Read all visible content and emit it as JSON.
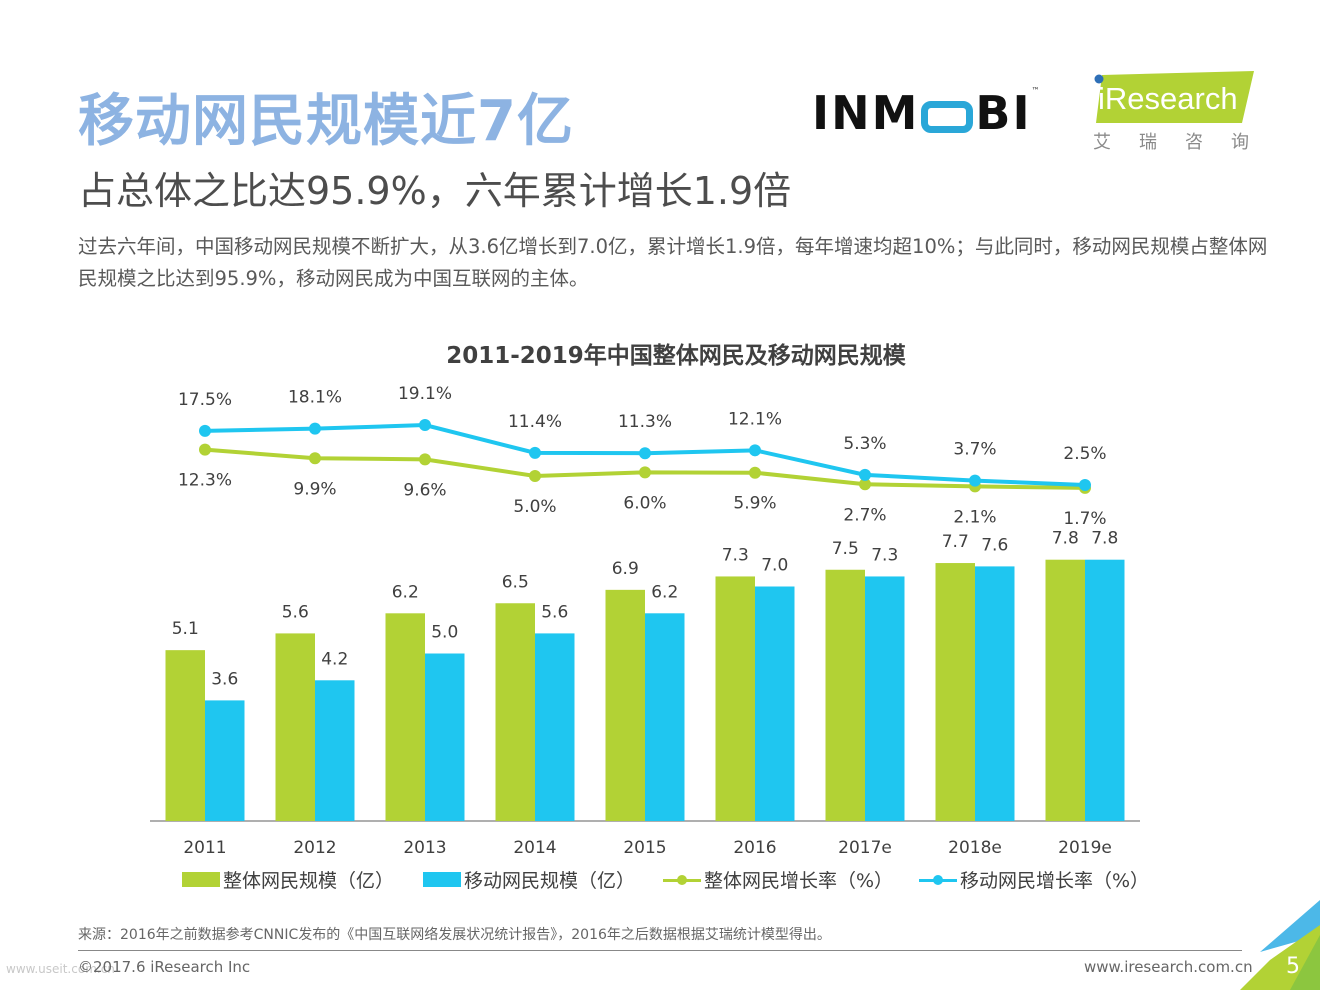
{
  "header": {
    "title": "移动网民规模近7亿",
    "subtitle": "占总体之比达95.9%，六年累计增长1.9倍",
    "description": "过去六年间，中国移动网民规模不断扩大，从3.6亿增长到7.0亿，累计增长1.9倍，每年增速均超10%；与此同时，移动网民规模占整体网民规模之比达到95.9%，移动网民成为中国互联网的主体。"
  },
  "logos": {
    "inmobi": {
      "pre": "INM",
      "post": "BI",
      "tm": "™"
    },
    "iresearch": {
      "text": "iResearch",
      "cn": "艾瑞咨询"
    }
  },
  "colors": {
    "title_blue": "#8db3e2",
    "green": "#b2d235",
    "blue": "#1fc6f0"
  },
  "chart_data": {
    "type": "bar",
    "title": "2011-2019年中国整体网民及移动网民规模",
    "categories": [
      "2011",
      "2012",
      "2013",
      "2014",
      "2015",
      "2016",
      "2017e",
      "2018e",
      "2019e"
    ],
    "series": [
      {
        "name": "整体网民规模（亿）",
        "kind": "bar",
        "color": "#b2d235",
        "values": [
          5.1,
          5.6,
          6.2,
          6.5,
          6.9,
          7.3,
          7.5,
          7.7,
          7.8
        ],
        "labels": [
          "5.1",
          "5.6",
          "6.2",
          "6.5",
          "6.9",
          "7.3",
          "7.5",
          "7.7",
          "7.8"
        ]
      },
      {
        "name": "移动网民规模（亿）",
        "kind": "bar",
        "color": "#1fc6f0",
        "values": [
          3.6,
          4.2,
          5.0,
          5.6,
          6.2,
          7.0,
          7.3,
          7.6,
          7.8
        ],
        "labels": [
          "3.6",
          "4.2",
          "5.0",
          "5.6",
          "6.2",
          "7.0",
          "7.3",
          "7.6",
          "7.8"
        ]
      },
      {
        "name": "整体网民增长率（%）",
        "kind": "line",
        "color": "#b2d235",
        "values": [
          12.3,
          9.9,
          9.6,
          5.0,
          6.0,
          5.9,
          2.7,
          2.1,
          1.7
        ],
        "labels": [
          "12.3%",
          "9.9%",
          "9.6%",
          "5.0%",
          "6.0%",
          "5.9%",
          "2.7%",
          "2.1%",
          "1.7%"
        ]
      },
      {
        "name": "移动网民增长率（%）",
        "kind": "line",
        "color": "#1fc6f0",
        "values": [
          17.5,
          18.1,
          19.1,
          11.4,
          11.3,
          12.1,
          5.3,
          3.7,
          2.5
        ],
        "labels": [
          "17.5%",
          "18.1%",
          "19.1%",
          "11.4%",
          "11.3%",
          "12.1%",
          "5.3%",
          "3.7%",
          "2.5%"
        ]
      }
    ],
    "xlabel": "",
    "ylabel": "",
    "grid": false,
    "legend": "bottom"
  },
  "footer": {
    "source": "来源：2016年之前数据参考CNNIC发布的《中国互联网络发展状况统计报告》，2016年之后数据根据艾瑞统计模型得出。",
    "copyright": "©2017.6 iResearch Inc",
    "website": "www.iresearch.com.cn",
    "page": "5",
    "watermark": "www.useit.com.cn"
  }
}
